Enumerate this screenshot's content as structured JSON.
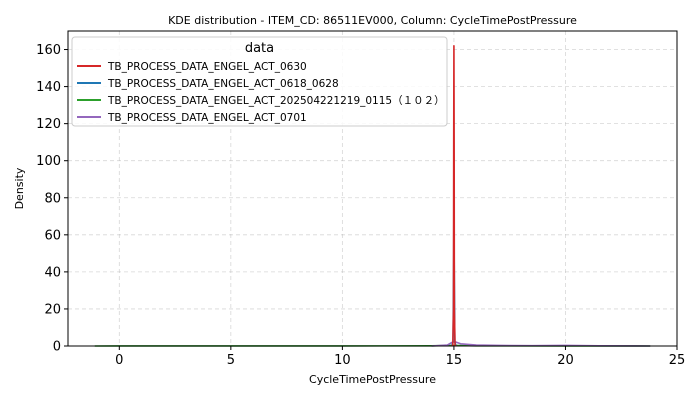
{
  "chart_data": {
    "type": "line",
    "title": "KDE distribution - ITEM_CD: 86511EV000, Column: CycleTimePostPressure",
    "xlabel": "CycleTimePostPressure",
    "ylabel": "Density",
    "xlim": [
      -2.3,
      25
    ],
    "ylim": [
      0,
      170
    ],
    "x_ticks": [
      0,
      5,
      10,
      15,
      20,
      25
    ],
    "y_ticks": [
      0,
      20,
      40,
      60,
      80,
      100,
      120,
      140,
      160
    ],
    "grid": true,
    "legend": {
      "title": "data",
      "placement": "top-left"
    },
    "series": [
      {
        "name": "TB_PROCESS_DATA_ENGEL_ACT_0630",
        "color": "#d62728",
        "x": [
          14.9,
          14.95,
          14.98,
          14.99,
          15.0,
          15.01,
          15.02,
          15.05,
          15.1
        ],
        "y": [
          0,
          0.5,
          20,
          110,
          162,
          110,
          20,
          0.5,
          0
        ]
      },
      {
        "name": "TB_PROCESS_DATA_ENGEL_ACT_0618_0628",
        "color": "#1f77b4",
        "x": [
          14.9,
          14.96,
          14.99,
          15.0,
          15.01,
          15.04,
          15.1
        ],
        "y": [
          0,
          2,
          50,
          84,
          50,
          2,
          0
        ]
      },
      {
        "name": "TB_PROCESS_DATA_ENGEL_ACT_202504221219_0115（１０２）",
        "color": "#2ca02c",
        "x": [
          -1.1,
          0,
          5,
          10,
          14,
          15,
          16,
          20,
          23.8
        ],
        "y": [
          0,
          0.05,
          0.05,
          0.05,
          0.1,
          0.3,
          0.1,
          0.05,
          0
        ]
      },
      {
        "name": "TB_PROCESS_DATA_ENGEL_ACT_0701",
        "color": "#9467bd",
        "x": [
          14.0,
          14.7,
          15.0,
          15.3,
          16.0,
          17.0,
          18.5,
          20.0,
          21.5,
          23.8
        ],
        "y": [
          0,
          0.5,
          2.5,
          1.2,
          0.5,
          0.3,
          0.2,
          0.3,
          0.1,
          0
        ]
      }
    ]
  }
}
